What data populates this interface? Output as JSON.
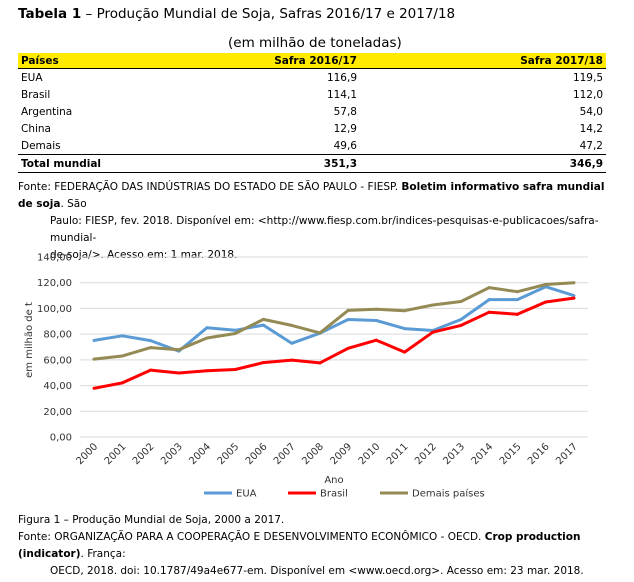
{
  "table": {
    "title_bold": "Tabela 1",
    "title_rest": " – Produção Mundial de Soja, Safras 2016/17 e 2017/18",
    "subtitle": "(em milhão de toneladas)",
    "headers": [
      "Países",
      "Safra 2016/17",
      "Safra 2017/18"
    ],
    "rows": [
      [
        "EUA",
        "116,9",
        "119,5"
      ],
      [
        "Brasil",
        "114,1",
        "112,0"
      ],
      [
        "Argentina",
        "57,8",
        "54,0"
      ],
      [
        "China",
        "12,9",
        "14,2"
      ],
      [
        "Demais",
        "49,6",
        "47,2"
      ]
    ],
    "total": [
      "Total mundial",
      "351,3",
      "346,9"
    ],
    "header_color": "#ffea00"
  },
  "source1": {
    "part1": "Fonte: FEDERAÇÃO DAS INDÚSTRIAS DO ESTADO DE SÃO PAULO - FIESP. ",
    "bold": "Boletim informativo safra mundial de soja",
    "part2": ". São",
    "line2": "Paulo: FIESP, fev. 2018. Disponível em: <http://www.fiesp.com.br/indices-pesquisas-e-publicacoes/safra-mundial-",
    "line3": "de-soja/>. Acesso em: 1 mar. 2018."
  },
  "chart_data": {
    "type": "line",
    "x": [
      "2000",
      "2001",
      "2002",
      "2003",
      "2004",
      "2005",
      "2006",
      "2007",
      "2008",
      "2009",
      "2010",
      "2011",
      "2012",
      "2013",
      "2014",
      "2015",
      "2016",
      "2017"
    ],
    "series": [
      {
        "name": "EUA",
        "color": "#5b9bd5",
        "values": [
          75.1,
          78.7,
          75.0,
          66.8,
          85.0,
          83.0,
          87.0,
          72.9,
          80.7,
          91.4,
          90.6,
          84.3,
          82.8,
          91.4,
          106.9,
          106.9,
          116.9,
          110.0
        ]
      },
      {
        "name": "Brasil",
        "color": "#ff0000",
        "values": [
          37.9,
          42.1,
          52.0,
          49.8,
          51.5,
          52.5,
          57.9,
          59.8,
          57.6,
          69.0,
          75.3,
          66.0,
          81.5,
          86.8,
          97.1,
          95.4,
          105.0,
          108.0
        ]
      },
      {
        "name": "Demais países",
        "color": "#948a54",
        "values": [
          60.6,
          63.0,
          69.5,
          67.8,
          77.0,
          80.5,
          91.5,
          86.8,
          81.0,
          98.5,
          99.4,
          98.2,
          102.7,
          105.4,
          116.2,
          113.0,
          118.6,
          120.0
        ]
      }
    ],
    "ylim": [
      0,
      140
    ],
    "yticks": [
      "0,00",
      "20,00",
      "40,00",
      "60,00",
      "80,00",
      "100,00",
      "120,00",
      "140,00"
    ],
    "xlabel": "Ano",
    "ylabel": "em milhão de t",
    "grid": true,
    "legend_position": "bottom"
  },
  "figure": {
    "caption": "Figura 1 – Produção Mundial de Soja, 2000 a 2017."
  },
  "source2": {
    "part1": "Fonte: ORGANIZAÇÃO PARA A COOPERAÇÃO E DESENVOLVIMENTO ECONÔMICO - OECD. ",
    "bold": "Crop production (indicator)",
    "part2": ". França:",
    "line2a": "OECD, 2018. doi: 10.1787/49a4e677-em. Disponível em <",
    "link": "www.oecd.org",
    "line2b": ">. Acesso em: 23 mar. 2018."
  }
}
